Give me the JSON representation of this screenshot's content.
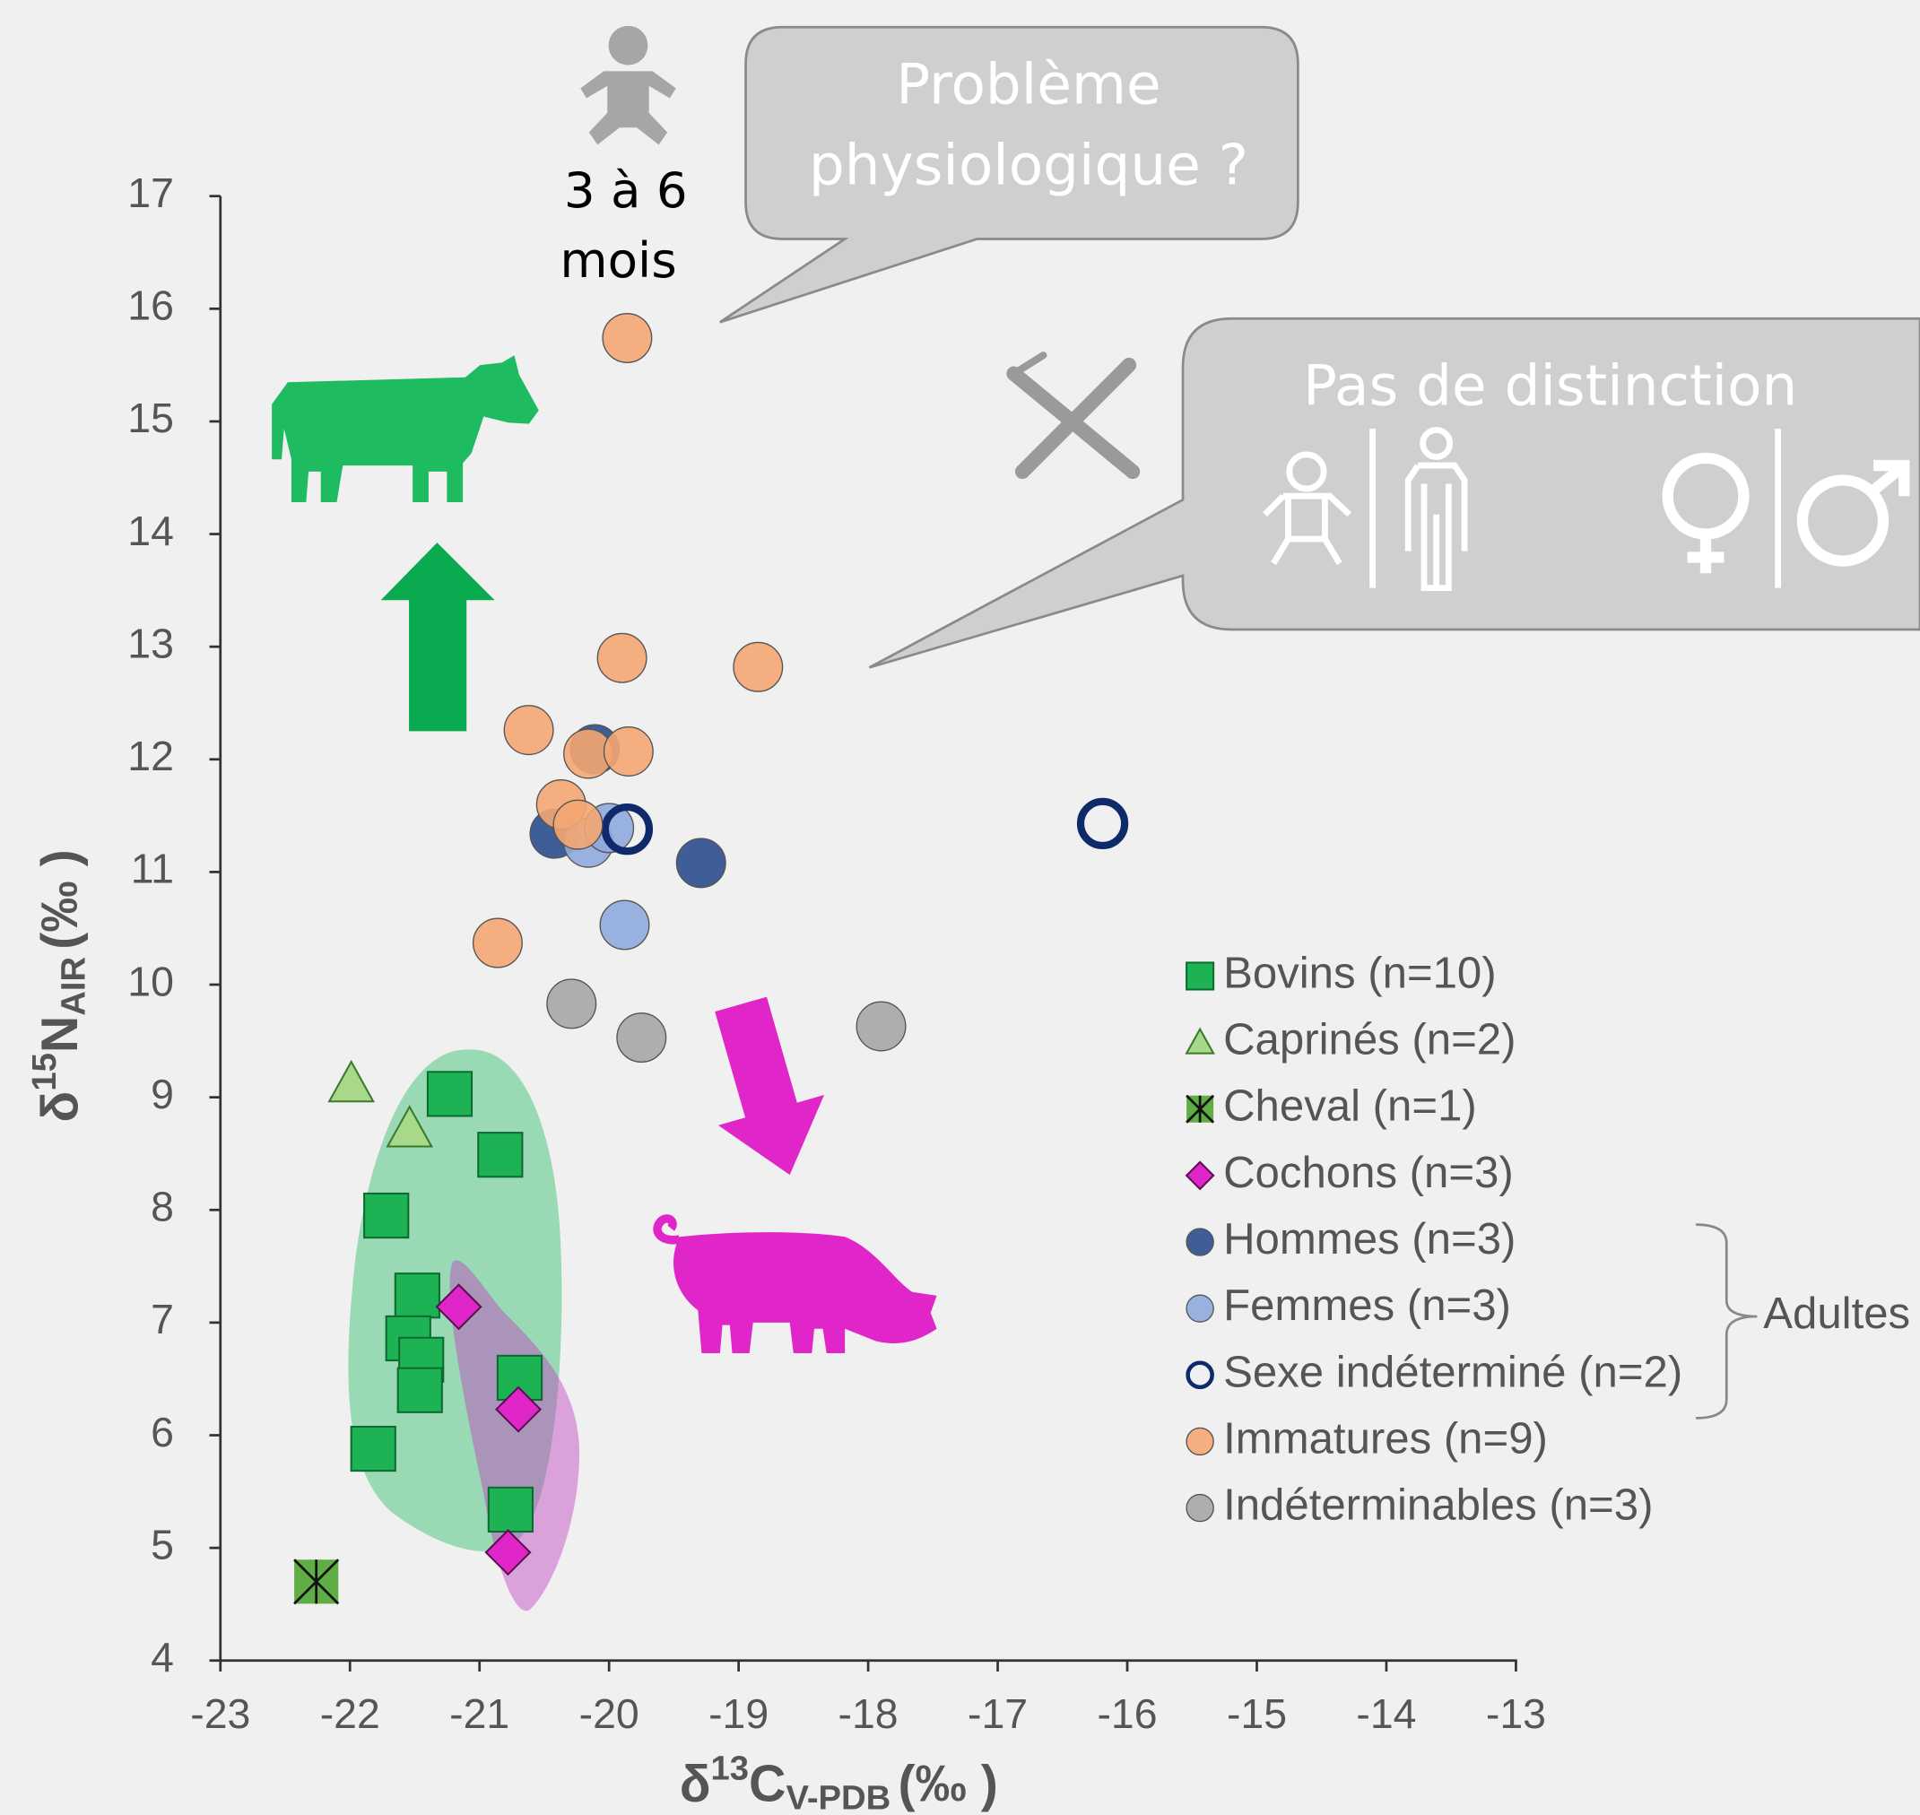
{
  "chart_data": {
    "type": "scatter",
    "xlabel": {
      "base": "δ",
      "sup": "13",
      "main": "C",
      "sub": "V-PDB",
      "unit": "(‰ )"
    },
    "ylabel": {
      "base": "δ",
      "sup": "15",
      "main": "N",
      "sub": "AIR",
      "unit": "(‰ )"
    },
    "xlim": [
      -23,
      -13
    ],
    "xticks": [
      -23,
      -22,
      -21,
      -20,
      -19,
      -18,
      -17,
      -16,
      -15,
      -14,
      -13
    ],
    "ylim": [
      4,
      17
    ],
    "yticks": [
      4,
      5,
      6,
      7,
      8,
      9,
      10,
      11,
      12,
      13,
      14,
      15,
      16,
      17
    ],
    "annotations": {
      "age": [
        "3 à 6",
        "mois"
      ],
      "callout_1": [
        "Problème",
        "physiologique ?"
      ],
      "callout_2": "Pas de distinction",
      "group": "Adultes"
    },
    "series": [
      {
        "name": "Bovins (n=10)",
        "color": "#1db354",
        "marker": "square",
        "x": [
          -21.23,
          -20.84,
          -21.72,
          -21.48,
          -21.55,
          -21.45,
          -21.46,
          -21.82,
          -20.69,
          -20.76
        ],
        "values": [
          9.03,
          8.49,
          7.95,
          7.24,
          6.86,
          6.67,
          6.4,
          5.88,
          6.51,
          5.34
        ]
      },
      {
        "name": "Caprinés (n=2)",
        "color": "#a8d88a",
        "marker": "triangle",
        "x": [
          -21.99,
          -21.54
        ],
        "values": [
          9.12,
          8.72
        ]
      },
      {
        "name": "Cheval (n=1)",
        "color": "#5fae45",
        "marker": "cross-square",
        "x": [
          -22.26
        ],
        "values": [
          4.7
        ]
      },
      {
        "name": "Cochons (n=3)",
        "color": "#e026c8",
        "marker": "diamond",
        "x": [
          -21.16,
          -20.7,
          -20.78
        ],
        "values": [
          7.14,
          6.23,
          4.96
        ]
      },
      {
        "name": "Hommes (n=3)",
        "color": "#2b4c8c",
        "marker": "circle",
        "x": [
          -20.11,
          -20.42,
          -19.29
        ],
        "values": [
          12.09,
          11.34,
          11.08
        ]
      },
      {
        "name": "Femmes (n=3)",
        "color": "#8faadc",
        "marker": "circle",
        "x": [
          -20.16,
          -20.0,
          -19.88
        ],
        "values": [
          11.26,
          11.39,
          10.53
        ]
      },
      {
        "name": "Sexe indéterminé (n=2)",
        "color": "#0e2a6b",
        "marker": "ring",
        "x": [
          -19.86,
          -16.19
        ],
        "values": [
          11.38,
          11.43
        ]
      },
      {
        "name": "Immatures (n=9)",
        "color": "#f4a672",
        "marker": "circle",
        "x": [
          -19.86,
          -19.9,
          -18.85,
          -20.62,
          -20.16,
          -19.85,
          -20.37,
          -20.24,
          -20.86
        ],
        "values": [
          15.74,
          12.9,
          12.82,
          12.26,
          12.05,
          12.07,
          11.6,
          11.42,
          10.37
        ]
      },
      {
        "name": "Indéterminables (n=3)",
        "color": "#a6a6a6",
        "marker": "circle",
        "x": [
          -20.29,
          -19.75,
          -17.9
        ],
        "values": [
          9.83,
          9.53,
          9.63
        ]
      }
    ]
  }
}
